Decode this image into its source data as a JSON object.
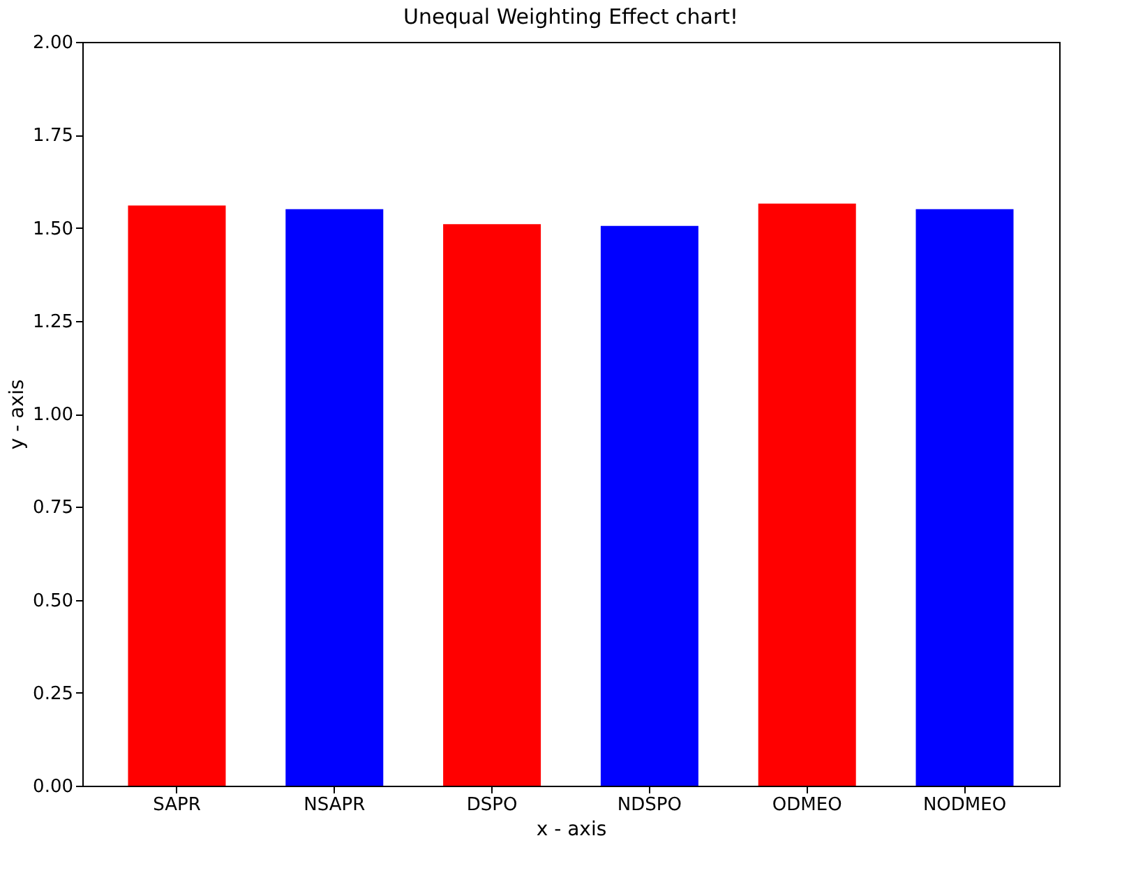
{
  "chart_data": {
    "type": "bar",
    "title": "Unequal Weighting Effect chart!",
    "xlabel": "x - axis",
    "ylabel": "y - axis",
    "categories": [
      "SAPR",
      "NSAPR",
      "DSPO",
      "NDSPO",
      "ODMEO",
      "NODMEO"
    ],
    "values": [
      1.56,
      1.55,
      1.51,
      1.505,
      1.565,
      1.55
    ],
    "colors": [
      "#ff0000",
      "#0000ff",
      "#ff0000",
      "#0000ff",
      "#ff0000",
      "#0000ff"
    ],
    "ylim": [
      0,
      2
    ],
    "yticks": [
      {
        "value": 0,
        "label": "0.00"
      },
      {
        "value": 0.25,
        "label": "0.25"
      },
      {
        "value": 0.5,
        "label": "0.50"
      },
      {
        "value": 0.75,
        "label": "0.75"
      },
      {
        "value": 1,
        "label": "1.00"
      },
      {
        "value": 1.25,
        "label": "1.25"
      },
      {
        "value": 1.5,
        "label": "1.50"
      },
      {
        "value": 1.75,
        "label": "1.75"
      },
      {
        "value": 2,
        "label": "2.00"
      }
    ],
    "grid": false
  }
}
